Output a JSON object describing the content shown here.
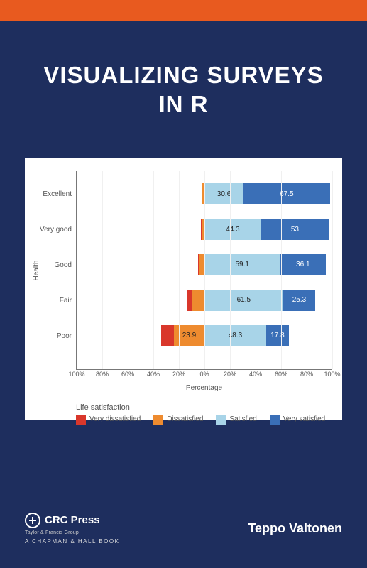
{
  "accent_bar_color": "#e85a1f",
  "background_color": "#1e2e5e",
  "title_line1": "VISUALIZING SURVEYS",
  "title_line2": "IN R",
  "chart": {
    "type": "diverging-stacked-bar",
    "y_axis_label": "Health",
    "x_axis_label": "Percentage",
    "panel_background": "#f6f6f6",
    "plot_background": "#ffffff",
    "grid_color": "#f0f0f0",
    "label_fontsize": 10,
    "tick_fontsize": 9,
    "categories": [
      "Excellent",
      "Very good",
      "Good",
      "Fair",
      "Poor"
    ],
    "x_range": [
      -100,
      100
    ],
    "x_ticks": [
      -100,
      -80,
      -60,
      -40,
      -20,
      0,
      20,
      40,
      60,
      80,
      100
    ],
    "x_tick_labels": [
      "100%",
      "80%",
      "60%",
      "40%",
      "20%",
      "0%",
      "20%",
      "40%",
      "60%",
      "80%",
      "100%"
    ],
    "series": [
      {
        "name": "Very dissatisfied",
        "color": "#d9372b"
      },
      {
        "name": "Dissatisfied",
        "color": "#ee8b2f"
      },
      {
        "name": "Satisfied",
        "color": "#a8d4e8"
      },
      {
        "name": "Very satisfied",
        "color": "#3a6fb7"
      }
    ],
    "rows": [
      {
        "cat": "Excellent",
        "neg": [
          0.4,
          1.5
        ],
        "pos": [
          30.6,
          67.5
        ],
        "labels": [
          "",
          "",
          "30.6",
          "67.5"
        ]
      },
      {
        "cat": "Very good",
        "neg": [
          0.5,
          2.2
        ],
        "pos": [
          44.3,
          53.0
        ],
        "labels": [
          "",
          "",
          "44.3",
          "53"
        ]
      },
      {
        "cat": "Good",
        "neg": [
          0.8,
          4.0
        ],
        "pos": [
          59.1,
          36.1
        ],
        "labels": [
          "",
          "",
          "59.1",
          "36.1"
        ]
      },
      {
        "cat": "Fair",
        "neg": [
          3.0,
          10.2
        ],
        "pos": [
          61.5,
          25.3
        ],
        "labels": [
          "",
          "",
          "61.5",
          "25.3"
        ]
      },
      {
        "cat": "Poor",
        "neg": [
          10.0,
          23.9
        ],
        "pos": [
          48.3,
          17.8
        ],
        "labels": [
          "",
          "23.9",
          "48.3",
          "17.8"
        ]
      }
    ],
    "legend_title": "Life satisfaction"
  },
  "publisher": {
    "name": "CRC Press",
    "tagline": "Taylor & Francis Group",
    "series": "A CHAPMAN & HALL BOOK"
  },
  "author": "Teppo Valtonen"
}
